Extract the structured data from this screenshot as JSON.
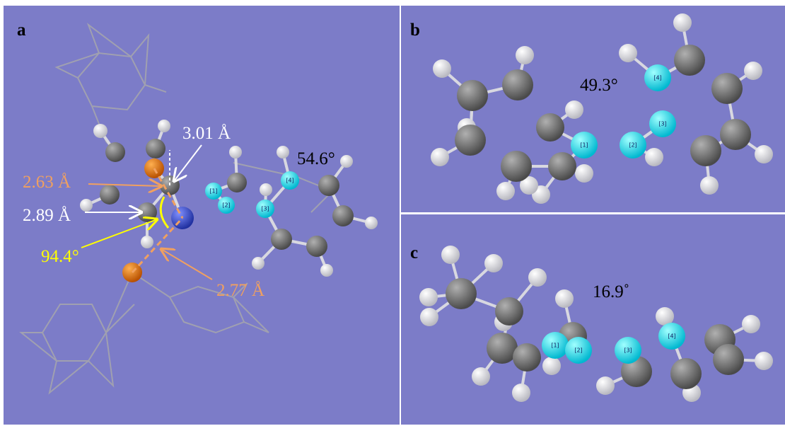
{
  "panels": [
    {
      "label": "a",
      "annotations": [
        "3.01 Å",
        "2.63 Å",
        "2.89 Å",
        "94.4°",
        "2.77 Å",
        "54.6°"
      ],
      "atom_labels": [
        "[1]",
        "[2]",
        "[3]",
        "[4]"
      ]
    },
    {
      "label": "b",
      "annotations": [
        "49.3°"
      ],
      "atom_labels": [
        "[1]",
        "[2]",
        "[3]",
        "[4]"
      ]
    },
    {
      "label": "c",
      "annotations": [
        "16.9˚"
      ],
      "atom_labels": [
        "[1]",
        "[2]",
        "[3]",
        "[4]"
      ]
    }
  ]
}
